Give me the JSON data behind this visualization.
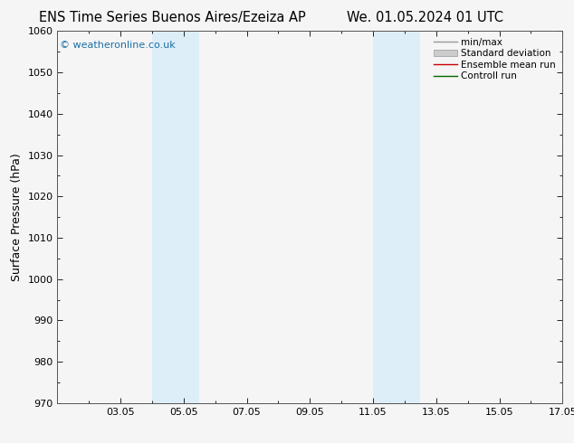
{
  "title_left": "ENS Time Series Buenos Aires/Ezeiza AP",
  "title_right": "We. 01.05.2024 01 UTC",
  "ylabel": "Surface Pressure (hPa)",
  "ylim": [
    970,
    1060
  ],
  "yticks": [
    970,
    980,
    990,
    1000,
    1010,
    1020,
    1030,
    1040,
    1050,
    1060
  ],
  "xlim": [
    1.0,
    17.0
  ],
  "xtick_labels": [
    "03.05",
    "05.05",
    "07.05",
    "09.05",
    "11.05",
    "13.05",
    "15.05",
    "17.05"
  ],
  "xtick_positions": [
    3,
    5,
    7,
    9,
    11,
    13,
    15,
    17
  ],
  "shaded_bands": [
    {
      "x_start": 4.0,
      "x_end": 5.5,
      "color": "#ddeef8"
    },
    {
      "x_start": 11.0,
      "x_end": 12.5,
      "color": "#ddeef8"
    }
  ],
  "watermark": "© weatheronline.co.uk",
  "legend_items": [
    {
      "label": "min/max",
      "color": "#999999",
      "lw": 1.0,
      "linestyle": "-"
    },
    {
      "label": "Standard deviation",
      "color": "#cccccc",
      "lw": 5,
      "linestyle": "-"
    },
    {
      "label": "Ensemble mean run",
      "color": "#cc0000",
      "lw": 1.0,
      "linestyle": "-"
    },
    {
      "label": "Controll run",
      "color": "#006600",
      "lw": 1.0,
      "linestyle": "-"
    }
  ],
  "background_color": "#f5f5f5",
  "plot_bg_color": "#f5f5f5",
  "border_color": "#555555",
  "title_fontsize": 10.5,
  "axis_label_fontsize": 9,
  "tick_fontsize": 8,
  "watermark_color": "#1a6fa8",
  "watermark_fontsize": 8,
  "legend_fontsize": 7.5
}
